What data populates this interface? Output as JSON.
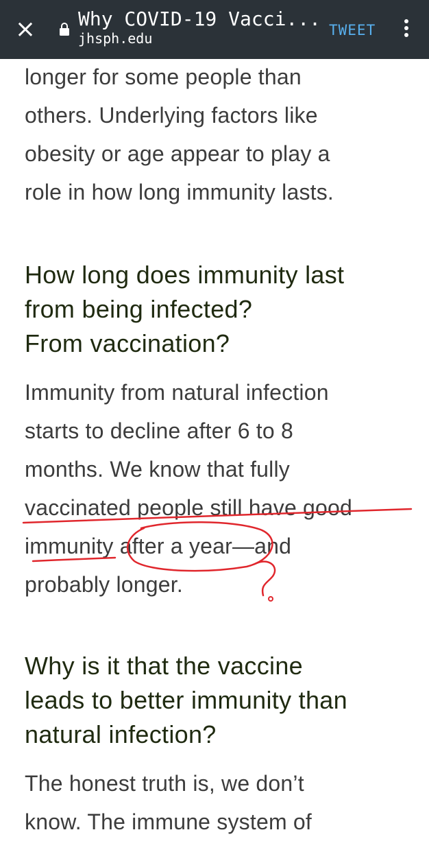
{
  "toolbar": {
    "close_glyph": "×",
    "title": "Why COVID-19 Vacci...",
    "domain": "jhsph.edu",
    "tweet_label": "TWEET"
  },
  "article": {
    "p1_lines": [
      "longer for some people than",
      "others. Underlying factors like",
      "obesity or age appear to play a",
      "role in how long immunity lasts."
    ],
    "h1_lines": [
      "How long does immunity last",
      "from being infected?",
      "From vaccination?"
    ],
    "p2_lines": [
      "Immunity from natural infection",
      "starts to decline after 6 to 8",
      "months. We know that fully",
      "vaccinated people still have good",
      "immunity after a year—and",
      "probably longer."
    ],
    "h2_lines": [
      "Why is it that the vaccine",
      "leads to better immunity than",
      "natural infection?"
    ],
    "p3_lines": [
      "The honest truth is, we don’t",
      "know. The immune system of"
    ]
  },
  "colors": {
    "toolbar_bg": "#2b3238",
    "tweet": "#58b0ee",
    "heading": "#1f2a10",
    "body": "#3c3c3c",
    "annotation": "#e0262c"
  },
  "annotation": {
    "glyph": "?"
  }
}
